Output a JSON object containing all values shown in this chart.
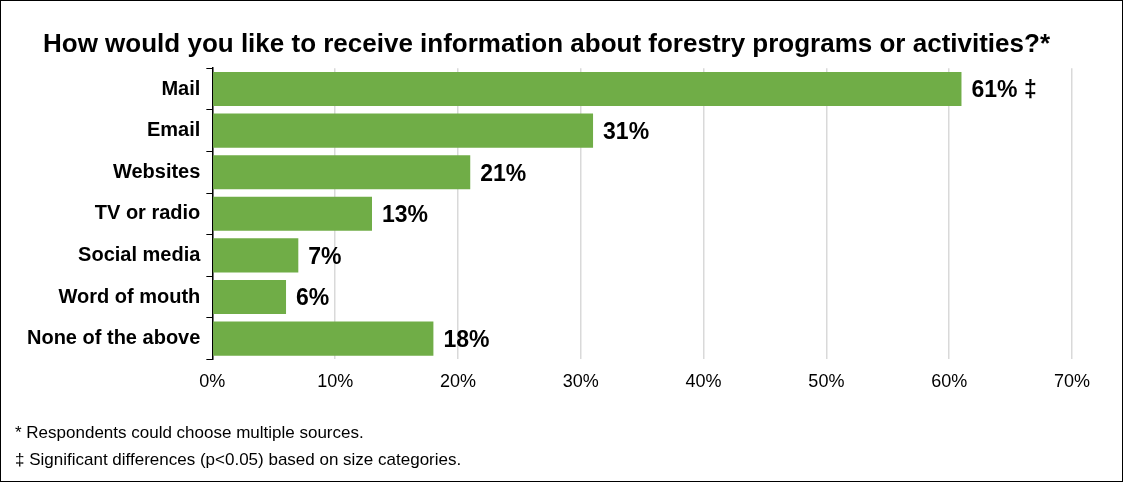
{
  "chart_data": {
    "type": "bar",
    "orientation": "horizontal",
    "title": "How would you like to receive information about forestry programs or activities?*",
    "categories": [
      "Mail",
      "Email",
      "Websites",
      "TV or radio",
      "Social media",
      "Word of mouth",
      "None of the above"
    ],
    "values": [
      61,
      31,
      21,
      13,
      7,
      6,
      18
    ],
    "value_labels": [
      "61% ‡",
      "31%",
      "21%",
      "13%",
      "7%",
      "6%",
      "18%"
    ],
    "color": "#70ad47",
    "xlim": [
      0,
      70
    ],
    "xticks": [
      {
        "value": 0,
        "label": "0%"
      },
      {
        "value": 10,
        "label": "10%"
      },
      {
        "value": 20,
        "label": "20%"
      },
      {
        "value": 30,
        "label": "30%"
      },
      {
        "value": 40,
        "label": "40%"
      },
      {
        "value": 50,
        "label": "50%"
      },
      {
        "value": 60,
        "label": "60%"
      },
      {
        "value": 70,
        "label": "70%"
      }
    ],
    "grid": "x",
    "annotations": [
      "* Respondents could choose multiple sources.",
      "‡ Significant differences (p<0.05) based on size categories."
    ]
  }
}
